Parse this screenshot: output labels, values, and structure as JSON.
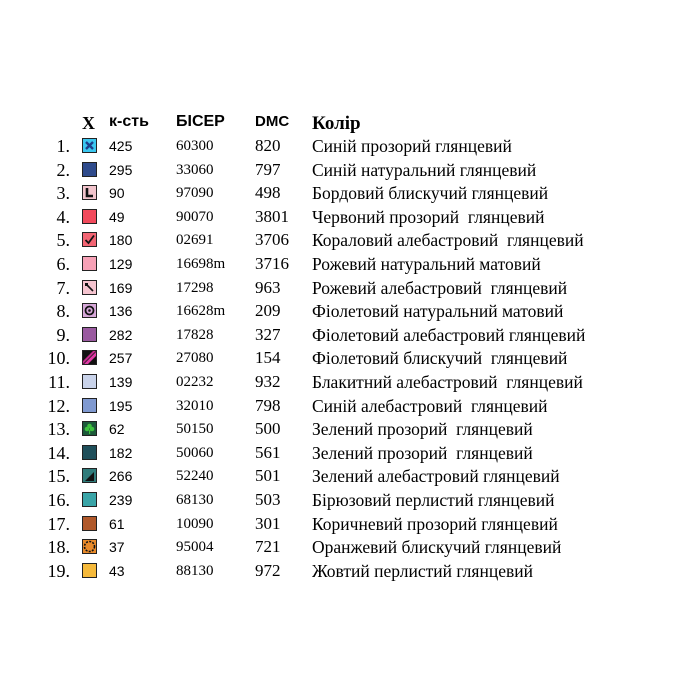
{
  "headers": {
    "symbol": "X",
    "quantity": "к-сть",
    "beads": "БІСЕР",
    "dmc": "DMC",
    "color": "Колір"
  },
  "rows": [
    {
      "num": "1.",
      "color": "#2a4e9e",
      "icon": "cross-icon",
      "qty": "425",
      "bead": "60300",
      "dmc": "820",
      "name": "Синій прозорий глянцевий"
    },
    {
      "num": "2.",
      "color": "#2f4b8c",
      "icon": "none",
      "qty": "295",
      "bead": "33060",
      "dmc": "797",
      "name": "Синій натуральний глянцевий"
    },
    {
      "num": "3.",
      "color": "#8a2e3a",
      "icon": "corner-icon",
      "qty": "90",
      "bead": "97090",
      "dmc": "498",
      "name": "Бордовий блискучий глянцевий"
    },
    {
      "num": "4.",
      "color": "#f24a5c",
      "icon": "none",
      "qty": "49",
      "bead": "90070",
      "dmc": "3801",
      "name": "Червоний прозорий  глянцевий"
    },
    {
      "num": "5.",
      "color": "#f26573",
      "icon": "check-icon",
      "qty": "180",
      "bead": "02691",
      "dmc": "3706",
      "name": "Кораловий алебастровий  глянцевий"
    },
    {
      "num": "6.",
      "color": "#f7a1b6",
      "icon": "none",
      "qty": "129",
      "bead": "16698m",
      "dmc": "3716",
      "name": "Рожевий натуральний матовий"
    },
    {
      "num": "7.",
      "color": "#f5c4cf",
      "icon": "pin-icon",
      "qty": "169",
      "bead": "17298",
      "dmc": "963",
      "name": "Рожевий алебастровий  глянцевий"
    },
    {
      "num": "8.",
      "color": "#d6a7d8",
      "icon": "ring-icon",
      "qty": "136",
      "bead": "16628m",
      "dmc": "209",
      "name": "Фіолетовий натуральний матовий"
    },
    {
      "num": "9.",
      "color": "#9a5aa0",
      "icon": "none",
      "qty": "282",
      "bead": "17828",
      "dmc": "327",
      "name": "Фіолетовий алебастровий глянцевий"
    },
    {
      "num": "10.",
      "color": "#7b2c86",
      "icon": "stripe-icon",
      "qty": "257",
      "bead": "27080",
      "dmc": "154",
      "name": "Фіолетовий блискучий  глянцевий"
    },
    {
      "num": "11.",
      "color": "#c9d3ea",
      "icon": "none",
      "qty": "139",
      "bead": "02232",
      "dmc": "932",
      "name": "Блакитний алебастровий  глянцевий"
    },
    {
      "num": "12.",
      "color": "#7f99d0",
      "icon": "none",
      "qty": "195",
      "bead": "32010",
      "dmc": "798",
      "name": "Синій алебастровий  глянцевий"
    },
    {
      "num": "13.",
      "color": "#1c5a3a",
      "icon": "clover-icon",
      "qty": "62",
      "bead": "50150",
      "dmc": "500",
      "name": "Зелений прозорий  глянцевий"
    },
    {
      "num": "14.",
      "color": "#1f4f5a",
      "icon": "none",
      "qty": "182",
      "bead": "50060",
      "dmc": "561",
      "name": "Зелений прозорий  глянцевий"
    },
    {
      "num": "15.",
      "color": "#2f7b7a",
      "icon": "triangle-icon",
      "qty": "266",
      "bead": "52240",
      "dmc": "501",
      "name": "Зелений алебастровий глянцевий"
    },
    {
      "num": "16.",
      "color": "#3aa5a8",
      "icon": "none",
      "qty": "239",
      "bead": "68130",
      "dmc": "503",
      "name": "Бірюзовий перлистий глянцевий"
    },
    {
      "num": "17.",
      "color": "#b0582a",
      "icon": "none",
      "qty": "61",
      "bead": "10090",
      "dmc": "301",
      "name": "Коричневий прозорий глянцевий"
    },
    {
      "num": "18.",
      "color": "#e98a2a",
      "icon": "gear-icon",
      "qty": "37",
      "bead": "95004",
      "dmc": "721",
      "name": "Оранжевий блискучий глянцевий"
    },
    {
      "num": "19.",
      "color": "#f5b93a",
      "icon": "none",
      "qty": "43",
      "bead": "88130",
      "dmc": "972",
      "name": "Жовтий перлистий глянцевий"
    }
  ]
}
